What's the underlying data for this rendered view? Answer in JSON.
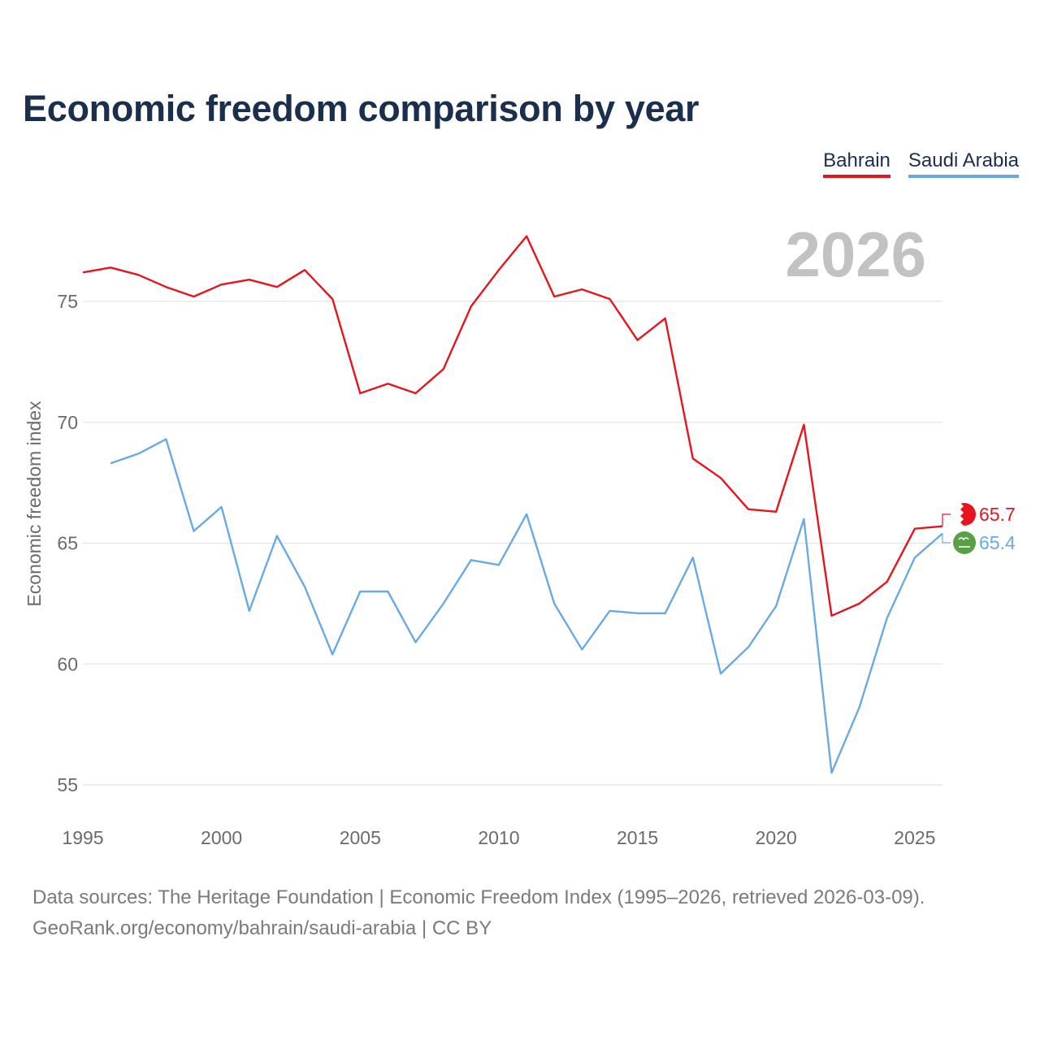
{
  "chart_data": {
    "type": "line",
    "title": "Economic freedom comparison by year",
    "ylabel": "Economic freedom index",
    "xlabel": "",
    "xlim": [
      1995,
      2026
    ],
    "ylim": [
      55,
      78
    ],
    "x_ticks": [
      1995,
      2000,
      2005,
      2010,
      2015,
      2020,
      2025
    ],
    "y_ticks": [
      55,
      60,
      65,
      70,
      75
    ],
    "grid": true,
    "legend_position": "top-right",
    "current_year": "2026",
    "series": [
      {
        "name": "Bahrain",
        "color": "#e8141d",
        "end_label": "65.7",
        "icon": "bahrain-flag-icon",
        "x": [
          1995,
          1996,
          1997,
          1998,
          1999,
          2000,
          2001,
          2002,
          2003,
          2004,
          2005,
          2006,
          2007,
          2008,
          2009,
          2010,
          2011,
          2012,
          2013,
          2014,
          2015,
          2016,
          2017,
          2018,
          2019,
          2020,
          2021,
          2022,
          2023,
          2024,
          2025,
          2026
        ],
        "values": [
          76.2,
          76.4,
          76.1,
          75.6,
          75.2,
          75.7,
          75.9,
          75.6,
          76.3,
          75.1,
          71.2,
          71.6,
          71.2,
          72.2,
          74.8,
          76.3,
          77.7,
          75.2,
          75.5,
          75.1,
          73.4,
          74.3,
          68.5,
          67.7,
          66.4,
          66.3,
          69.9,
          62.0,
          62.5,
          63.4,
          65.6,
          65.7
        ]
      },
      {
        "name": "Saudi Arabia",
        "color": "#6aaae4",
        "end_label": "65.4",
        "icon": "saudi-arabia-flag-icon",
        "x": [
          1996,
          1997,
          1998,
          1999,
          2000,
          2001,
          2002,
          2003,
          2004,
          2005,
          2006,
          2007,
          2008,
          2009,
          2010,
          2011,
          2012,
          2013,
          2014,
          2015,
          2016,
          2017,
          2018,
          2019,
          2020,
          2021,
          2022,
          2023,
          2024,
          2025,
          2026
        ],
        "values": [
          68.3,
          68.7,
          69.3,
          65.5,
          66.5,
          62.2,
          65.3,
          63.2,
          60.4,
          63.0,
          63.0,
          60.9,
          62.5,
          64.3,
          64.1,
          66.2,
          62.5,
          60.6,
          62.2,
          62.1,
          62.1,
          64.4,
          59.6,
          60.7,
          62.4,
          66.0,
          55.5,
          58.2,
          61.9,
          64.4,
          65.4
        ]
      }
    ]
  },
  "footer": {
    "line1": "Data sources: The Heritage Foundation | Economic Freedom Index (1995–2026, retrieved 2026-03-09).",
    "line2": "GeoRank.org/economy/bahrain/saudi-arabia | CC BY"
  }
}
